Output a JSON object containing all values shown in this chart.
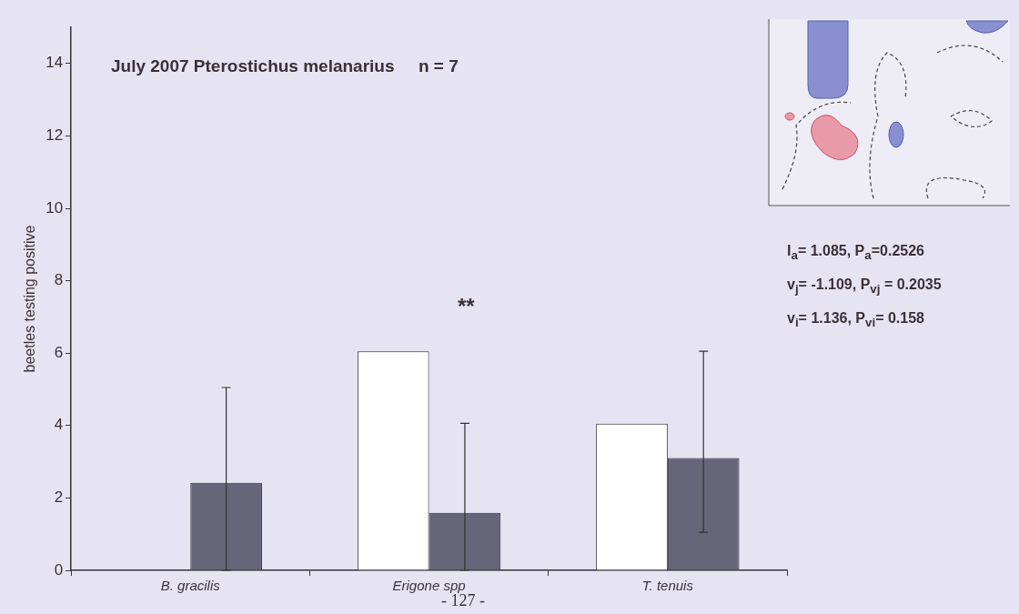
{
  "chart_data": {
    "type": "bar",
    "title": "July 2007 Pterostichus melanarius     n = 7",
    "ylabel": "beetles testing positive",
    "categories": [
      "B. gracilis",
      "Erigone spp",
      "T. tenuis"
    ],
    "series": [
      {
        "color": "#ffffff",
        "values": [
          0,
          6.05,
          4.05
        ]
      },
      {
        "color": "#676579",
        "values": [
          2.42,
          1.59,
          3.1
        ],
        "errors": [
          [
            0,
            5.05
          ],
          [
            0,
            4.06
          ],
          [
            1.05,
            6.05
          ]
        ]
      }
    ],
    "ylim": [
      0,
      15
    ],
    "yticks": [
      0,
      2,
      4,
      6,
      8,
      10,
      12,
      14
    ],
    "grid": false,
    "legend": false,
    "annotations": [
      "**",
      "I$_{a}$= 1.085, P$_{a}$=0.2526",
      "v$_{j}$= -1.109, P$_{vj}$ = 0.2035",
      "v$_{i}$= 1.136, P$_{vi}$= 0.158",
      "- 127 -"
    ]
  }
}
